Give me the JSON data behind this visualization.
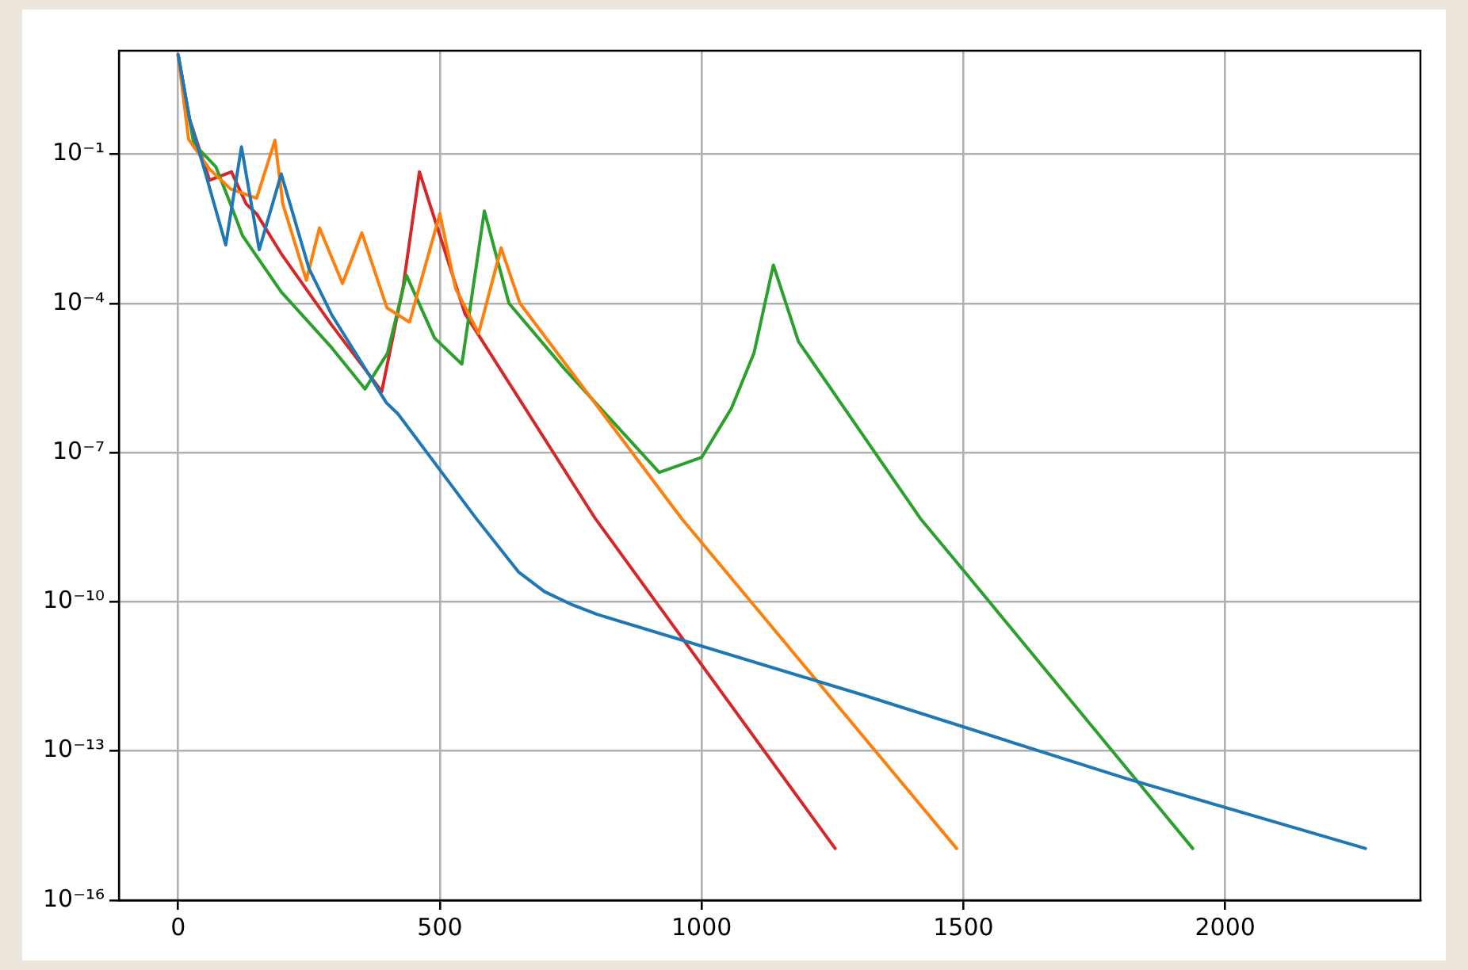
{
  "chart_data": {
    "type": "line",
    "log": "y",
    "grid": true,
    "marker": "none",
    "line_style": "solid",
    "xlim": [
      -113,
      2373
    ],
    "xticks": [
      0,
      500,
      1000,
      1500,
      2000
    ],
    "ylim": [
      1e-16,
      12
    ],
    "yticks": [
      {
        "value": 1e-16,
        "label": "10⁻¹⁶"
      },
      {
        "value": 1e-13,
        "label": "10⁻¹³"
      },
      {
        "value": 1e-10,
        "label": "10⁻¹⁰"
      },
      {
        "value": 1e-07,
        "label": "10⁻⁷"
      },
      {
        "value": 0.0001,
        "label": "10⁻⁴"
      },
      {
        "value": 0.1,
        "label": "10⁻¹"
      }
    ],
    "series": [
      {
        "color": "#1f77b4",
        "x": [
          0,
          22,
          50,
          91,
          121,
          155,
          197,
          250,
          293,
          398,
          420,
          500,
          569,
          650,
          700,
          750,
          800,
          1312,
          1811,
          2268
        ],
        "values": [
          10,
          0.5,
          0.05,
          0.0015,
          0.14,
          0.0012,
          0.04,
          0.0005,
          6e-05,
          1e-06,
          6e-07,
          4.5e-08,
          4.8e-09,
          4e-10,
          1.6e-10,
          9e-11,
          5.6e-11,
          1.3e-12,
          2.8e-14,
          1.1e-15
        ]
      },
      {
        "color": "#ff7f0e",
        "x": [
          0,
          20,
          60,
          100,
          150,
          185,
          200,
          245,
          270,
          314,
          351,
          399,
          442,
          500,
          530,
          574,
          617,
          653,
          962,
          1487
        ],
        "values": [
          10,
          0.2,
          0.05,
          0.02,
          0.013,
          0.19,
          0.01,
          0.00029,
          0.0033,
          0.00025,
          0.0026,
          8.1e-05,
          4.2e-05,
          0.0063,
          0.0002,
          2.5e-05,
          0.0013,
          0.0001,
          4.7e-09,
          1.1e-15
        ]
      },
      {
        "color": "#2ca02c",
        "x": [
          0,
          30,
          72,
          100,
          123,
          197,
          293,
          357,
          400,
          436,
          490,
          542,
          585,
          632,
          739,
          919,
          1000,
          1057,
          1100,
          1137,
          1185,
          1418,
          1508,
          1938
        ],
        "values": [
          10,
          0.16,
          0.056,
          0.01,
          0.0023,
          0.00017,
          1.3e-05,
          1.9e-06,
          1e-05,
          0.00037,
          2e-05,
          6e-06,
          0.0072,
          0.0001,
          4.7e-06,
          4e-08,
          8e-08,
          7.8e-07,
          1e-05,
          0.00059,
          1.7e-05,
          4.7e-09,
          3.4e-10,
          1.1e-15
        ]
      },
      {
        "color": "#d62728",
        "x": [
          0,
          22,
          60,
          102,
          130,
          150,
          197,
          293,
          389,
          430,
          461,
          548,
          797,
          1255
        ],
        "values": [
          10,
          0.5,
          0.03,
          0.044,
          0.01,
          0.0063,
          0.001,
          3.7e-05,
          1.7e-06,
          0.00022,
          0.044,
          6.2e-05,
          4.7e-09,
          1.1e-15
        ]
      }
    ]
  }
}
